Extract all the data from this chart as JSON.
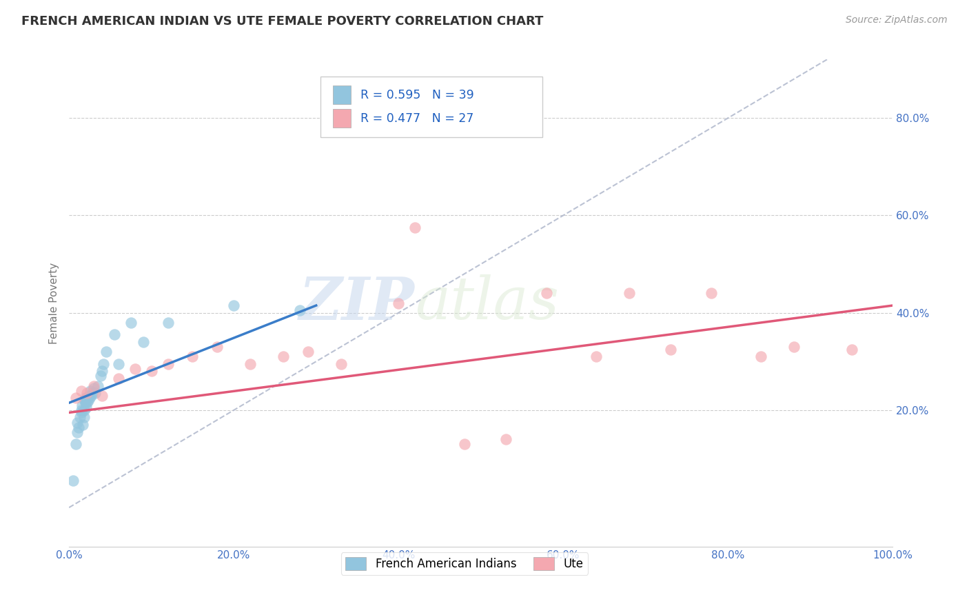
{
  "title": "FRENCH AMERICAN INDIAN VS UTE FEMALE POVERTY CORRELATION CHART",
  "source": "Source: ZipAtlas.com",
  "ylabel": "Female Poverty",
  "xlim": [
    0,
    1.0
  ],
  "ylim": [
    -0.08,
    0.92
  ],
  "xtick_labels": [
    "0.0%",
    "20.0%",
    "40.0%",
    "60.0%",
    "80.0%",
    "100.0%"
  ],
  "xtick_vals": [
    0.0,
    0.2,
    0.4,
    0.6,
    0.8,
    1.0
  ],
  "ytick_labels": [
    "20.0%",
    "40.0%",
    "60.0%",
    "80.0%"
  ],
  "ytick_vals": [
    0.2,
    0.4,
    0.6,
    0.8
  ],
  "legend_r1": "R = 0.595",
  "legend_n1": "N = 39",
  "legend_r2": "R = 0.477",
  "legend_n2": "N = 27",
  "blue_color": "#92c5de",
  "pink_color": "#f4a8b0",
  "blue_line_color": "#3a7dc9",
  "pink_line_color": "#e05878",
  "diagonal_color": "#b0b8cc",
  "watermark_zip": "ZIP",
  "watermark_atlas": "atlas",
  "background_color": "#ffffff",
  "tick_color": "#4472c4",
  "french_x": [
    0.005,
    0.008,
    0.01,
    0.01,
    0.012,
    0.013,
    0.015,
    0.015,
    0.016,
    0.017,
    0.018,
    0.018,
    0.019,
    0.02,
    0.02,
    0.02,
    0.021,
    0.022,
    0.022,
    0.023,
    0.024,
    0.025,
    0.026,
    0.027,
    0.028,
    0.03,
    0.032,
    0.035,
    0.038,
    0.04,
    0.042,
    0.045,
    0.055,
    0.06,
    0.075,
    0.09,
    0.12,
    0.2,
    0.28
  ],
  "french_y": [
    0.055,
    0.13,
    0.155,
    0.175,
    0.165,
    0.185,
    0.195,
    0.2,
    0.21,
    0.17,
    0.185,
    0.2,
    0.22,
    0.215,
    0.22,
    0.225,
    0.205,
    0.215,
    0.225,
    0.22,
    0.23,
    0.225,
    0.24,
    0.23,
    0.235,
    0.245,
    0.235,
    0.25,
    0.27,
    0.28,
    0.295,
    0.32,
    0.355,
    0.295,
    0.38,
    0.34,
    0.38,
    0.415,
    0.405
  ],
  "ute_x": [
    0.008,
    0.015,
    0.022,
    0.03,
    0.04,
    0.06,
    0.08,
    0.1,
    0.12,
    0.15,
    0.18,
    0.22,
    0.26,
    0.29,
    0.33,
    0.4,
    0.42,
    0.48,
    0.53,
    0.58,
    0.64,
    0.68,
    0.73,
    0.78,
    0.84,
    0.88,
    0.95
  ],
  "ute_y": [
    0.225,
    0.24,
    0.235,
    0.25,
    0.23,
    0.265,
    0.285,
    0.28,
    0.295,
    0.31,
    0.33,
    0.295,
    0.31,
    0.32,
    0.295,
    0.42,
    0.575,
    0.13,
    0.14,
    0.44,
    0.31,
    0.44,
    0.325,
    0.44,
    0.31,
    0.33,
    0.325
  ],
  "blue_line_x": [
    0.0,
    0.3
  ],
  "blue_line_y": [
    0.215,
    0.415
  ],
  "pink_line_x": [
    0.0,
    1.0
  ],
  "pink_line_y": [
    0.195,
    0.415
  ]
}
